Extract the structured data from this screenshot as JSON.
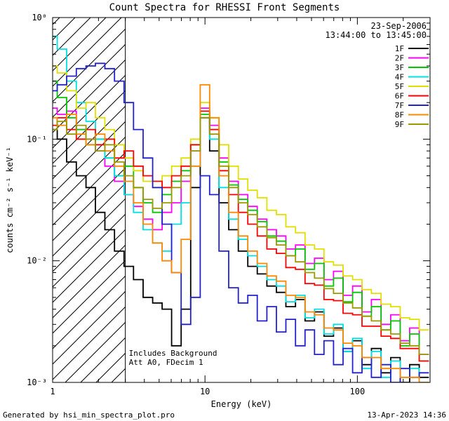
{
  "page": {
    "title": "Count Spectra for RHESSI Front Segments",
    "footer_left": "Generated by hsi_min_spectra_plot.pro",
    "footer_right": "13-Apr-2023 14:36"
  },
  "chart_data": {
    "type": "line",
    "subtype": "histogram-step-spectra",
    "title": "Count Spectra for RHESSI Front Segments",
    "xlabel": "Energy (keV)",
    "ylabel": "counts cm⁻² s⁻¹ keV⁻¹",
    "xscale": "log",
    "yscale": "log",
    "xlim": [
      1,
      300
    ],
    "ylim": [
      0.001,
      1
    ],
    "grid": false,
    "legend_position": "top-right",
    "date_label": "23-Sep-2006",
    "time_label": "13:44:00 to 13:45:00",
    "annotations": [
      "Includes Background",
      "Att A0, FDecim 1"
    ],
    "hatch_region": {
      "xmin": 1,
      "xmax": 3
    },
    "x_ticks": [
      1,
      10,
      100
    ],
    "x_tick_labels": [
      "1",
      "10",
      "100"
    ],
    "y_ticks": [
      0.001,
      0.01,
      0.1,
      1
    ],
    "y_tick_labels": [
      "10⁻³",
      "10⁻²",
      "10⁻¹",
      "10⁰"
    ],
    "energies": [
      1.0,
      1.15,
      1.33,
      1.54,
      1.78,
      2.05,
      2.37,
      2.74,
      3.16,
      3.65,
      4.22,
      4.87,
      5.62,
      6.49,
      7.5,
      8.66,
      10,
      11.5,
      13.3,
      15.4,
      17.8,
      20.5,
      23.7,
      27.4,
      31.6,
      36.5,
      42.2,
      48.7,
      56.2,
      64.9,
      75,
      86.6,
      100,
      115,
      133,
      154,
      178,
      205,
      237,
      274
    ],
    "series": [
      {
        "name": "1F",
        "color": "#000000",
        "values": [
          0.12,
          0.1,
          0.065,
          0.05,
          0.04,
          0.025,
          0.018,
          0.012,
          0.009,
          0.007,
          0.005,
          0.0045,
          0.004,
          0.002,
          0.004,
          0.04,
          0.15,
          0.08,
          0.03,
          0.018,
          0.012,
          0.009,
          0.0078,
          0.0062,
          0.0055,
          0.0042,
          0.0048,
          0.0032,
          0.0038,
          0.0024,
          0.0028,
          0.0018,
          0.0022,
          0.0014,
          0.0019,
          0.0012,
          0.0016,
          0.001,
          0.0014,
          0.0011
        ]
      },
      {
        "name": "2F",
        "color": "#FF00FF",
        "values": [
          0.18,
          0.16,
          0.17,
          0.12,
          0.1,
          0.08,
          0.06,
          0.045,
          0.035,
          0.028,
          0.022,
          0.018,
          0.025,
          0.03,
          0.045,
          0.08,
          0.18,
          0.13,
          0.07,
          0.045,
          0.035,
          0.028,
          0.022,
          0.018,
          0.016,
          0.0125,
          0.0135,
          0.0095,
          0.0105,
          0.007,
          0.0082,
          0.0052,
          0.0062,
          0.0038,
          0.0048,
          0.003,
          0.0036,
          0.0022,
          0.0028,
          0.0017
        ]
      },
      {
        "name": "3F",
        "color": "#00C800",
        "values": [
          0.3,
          0.22,
          0.15,
          0.12,
          0.09,
          0.1,
          0.07,
          0.05,
          0.06,
          0.04,
          0.03,
          0.025,
          0.035,
          0.045,
          0.055,
          0.09,
          0.16,
          0.12,
          0.065,
          0.042,
          0.032,
          0.026,
          0.021,
          0.016,
          0.0145,
          0.011,
          0.0125,
          0.0085,
          0.0095,
          0.0062,
          0.0072,
          0.0046,
          0.0055,
          0.0035,
          0.0042,
          0.0027,
          0.0032,
          0.002,
          0.0025,
          0.0015
        ]
      },
      {
        "name": "4F",
        "color": "#00E0E0",
        "values": [
          0.7,
          0.55,
          0.3,
          0.2,
          0.14,
          0.1,
          0.07,
          0.05,
          0.035,
          0.025,
          0.018,
          0.014,
          0.012,
          0.02,
          0.03,
          0.06,
          0.17,
          0.1,
          0.04,
          0.022,
          0.015,
          0.011,
          0.009,
          0.007,
          0.0062,
          0.0046,
          0.0052,
          0.0034,
          0.004,
          0.0025,
          0.003,
          0.0018,
          0.0023,
          0.0013,
          0.0018,
          0.0011,
          0.0015,
          0.0011,
          0.0013,
          0.001
        ]
      },
      {
        "name": "5F",
        "color": "#E0E000",
        "values": [
          0.4,
          0.35,
          0.25,
          0.18,
          0.2,
          0.15,
          0.12,
          0.09,
          0.07,
          0.055,
          0.045,
          0.04,
          0.05,
          0.06,
          0.07,
          0.1,
          0.2,
          0.15,
          0.09,
          0.06,
          0.047,
          0.038,
          0.033,
          0.026,
          0.024,
          0.019,
          0.017,
          0.0135,
          0.0125,
          0.0098,
          0.0092,
          0.0075,
          0.007,
          0.0058,
          0.0054,
          0.0044,
          0.0042,
          0.0034,
          0.0033,
          0.0027
        ]
      },
      {
        "name": "6F",
        "color": "#FF0000",
        "values": [
          0.13,
          0.15,
          0.12,
          0.1,
          0.12,
          0.09,
          0.1,
          0.07,
          0.08,
          0.06,
          0.05,
          0.045,
          0.04,
          0.05,
          0.06,
          0.09,
          0.17,
          0.12,
          0.055,
          0.035,
          0.025,
          0.02,
          0.016,
          0.0125,
          0.0115,
          0.0088,
          0.0085,
          0.0065,
          0.0063,
          0.0048,
          0.0047,
          0.0037,
          0.0036,
          0.0029,
          0.0029,
          0.0024,
          0.0023,
          0.0019,
          0.0019,
          0.0015
        ]
      },
      {
        "name": "7F",
        "color": "#2222CC",
        "values": [
          0.25,
          0.28,
          0.33,
          0.38,
          0.4,
          0.42,
          0.38,
          0.3,
          0.2,
          0.12,
          0.07,
          0.04,
          0.02,
          0.008,
          0.003,
          0.005,
          0.05,
          0.035,
          0.012,
          0.006,
          0.0045,
          0.0052,
          0.0032,
          0.0042,
          0.0026,
          0.0033,
          0.002,
          0.0027,
          0.0017,
          0.0022,
          0.0014,
          0.0019,
          0.0012,
          0.0016,
          0.0011,
          0.0014,
          0.001,
          0.0013,
          0.0011,
          0.0012
        ]
      },
      {
        "name": "8F",
        "color": "#FF8800",
        "values": [
          0.15,
          0.13,
          0.16,
          0.11,
          0.09,
          0.11,
          0.08,
          0.06,
          0.045,
          0.03,
          0.02,
          0.014,
          0.01,
          0.008,
          0.015,
          0.06,
          0.28,
          0.15,
          0.05,
          0.025,
          0.016,
          0.012,
          0.0095,
          0.0075,
          0.0068,
          0.0052,
          0.005,
          0.0038,
          0.0036,
          0.0028,
          0.0027,
          0.0021,
          0.002,
          0.0016,
          0.0016,
          0.0013,
          0.0013,
          0.0011,
          0.0011,
          0.001
        ]
      },
      {
        "name": "9F",
        "color": "#9A9A00",
        "values": [
          0.12,
          0.14,
          0.11,
          0.13,
          0.1,
          0.08,
          0.09,
          0.065,
          0.05,
          0.04,
          0.032,
          0.027,
          0.03,
          0.04,
          0.05,
          0.08,
          0.15,
          0.11,
          0.06,
          0.04,
          0.03,
          0.024,
          0.019,
          0.0155,
          0.0135,
          0.011,
          0.0098,
          0.008,
          0.0072,
          0.0059,
          0.0054,
          0.0045,
          0.0041,
          0.0035,
          0.0032,
          0.0027,
          0.0025,
          0.0021,
          0.002,
          0.0017
        ]
      }
    ]
  }
}
